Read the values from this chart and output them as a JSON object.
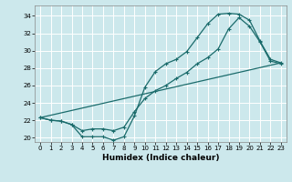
{
  "title": "",
  "xlabel": "Humidex (Indice chaleur)",
  "bg_color": "#cce8ec",
  "grid_color": "#ffffff",
  "line_color": "#1a6b6b",
  "xlim": [
    -0.5,
    23.5
  ],
  "ylim": [
    19.5,
    35.2
  ],
  "xticks": [
    0,
    1,
    2,
    3,
    4,
    5,
    6,
    7,
    8,
    9,
    10,
    11,
    12,
    13,
    14,
    15,
    16,
    17,
    18,
    19,
    20,
    21,
    22,
    23
  ],
  "yticks": [
    20,
    22,
    24,
    26,
    28,
    30,
    32,
    34
  ],
  "line1_x": [
    0,
    1,
    2,
    3,
    4,
    5,
    6,
    7,
    8,
    9,
    10,
    11,
    12,
    13,
    14,
    15,
    16,
    17,
    18,
    19,
    20,
    21,
    22,
    23
  ],
  "line1_y": [
    22.3,
    22.0,
    21.9,
    21.5,
    20.1,
    20.1,
    20.1,
    19.7,
    20.1,
    22.5,
    25.8,
    27.6,
    28.5,
    29.0,
    29.9,
    31.5,
    33.1,
    34.2,
    34.3,
    34.2,
    33.5,
    31.1,
    29.0,
    28.6
  ],
  "line2_x": [
    0,
    1,
    2,
    3,
    4,
    5,
    6,
    7,
    8,
    9,
    10,
    11,
    12,
    13,
    14,
    15,
    16,
    17,
    18,
    19,
    20,
    21,
    22,
    23
  ],
  "line2_y": [
    22.3,
    22.0,
    21.9,
    21.5,
    20.8,
    21.0,
    21.0,
    20.8,
    21.2,
    23.0,
    24.5,
    25.4,
    26.0,
    26.8,
    27.5,
    28.5,
    29.2,
    30.2,
    32.5,
    33.8,
    32.8,
    31.0,
    28.8,
    28.5
  ],
  "line3_x": [
    0,
    23
  ],
  "line3_y": [
    22.3,
    28.6
  ]
}
